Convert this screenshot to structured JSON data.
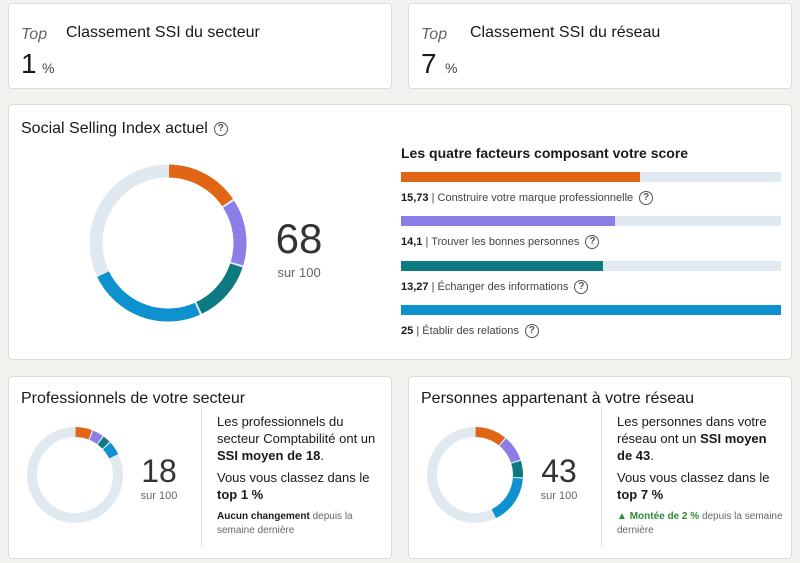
{
  "sector_rank": {
    "top_label": "Top",
    "title": "Classement SSI du secteur",
    "value": "1",
    "unit": "%"
  },
  "network_rank": {
    "top_label": "Top",
    "title": "Classement SSI du réseau",
    "value": "7",
    "unit": "%"
  },
  "ssi": {
    "title": "Social Selling Index actuel",
    "help_icon": "question-circle-icon",
    "score": "68",
    "out_of": "sur 100",
    "factors_title": "Les quatre facteurs composant votre score",
    "factors": [
      {
        "value": "15,73",
        "label": "| Construire votre marque professionnelle",
        "score": 15.73,
        "max": 25,
        "color": "#e06514"
      },
      {
        "value": "14,1",
        "label": "| Trouver les bonnes personnes",
        "score": 14.1,
        "max": 25,
        "color": "#8b7ee6"
      },
      {
        "value": "13,27",
        "label": "| Échanger des informations",
        "score": 13.27,
        "max": 25,
        "color": "#0d7a82"
      },
      {
        "value": "25",
        "label": "| Établir des relations",
        "score": 25,
        "max": 25,
        "color": "#0d92cf"
      }
    ]
  },
  "sector_peers": {
    "title": "Professionnels de votre secteur",
    "score": "18",
    "out_of": "sur 100",
    "donut_values": [
      6,
      4,
      3,
      5
    ],
    "desc_line1": "Les professionnels du secteur Comptabilité ont un",
    "desc_bold": "SSI moyen de 18",
    "desc_end": ".",
    "rank_text": "Vous vous classez dans le",
    "rank_bold": "top 1 %",
    "change_bold": "Aucun changement",
    "change_text": "depuis la semaine dernière"
  },
  "network_peers": {
    "title": "Personnes appartenant à votre réseau",
    "score": "43",
    "out_of": "sur 100",
    "donut_values": [
      11,
      9,
      6,
      17
    ],
    "desc_line1": "Les personnes dans votre réseau ont un",
    "desc_bold": "SSI moyen de 43",
    "desc_end": ".",
    "rank_text": "Vous vous classez dans le",
    "rank_bold": "top 7 %",
    "change_arrow": "▲",
    "change_bold": "Montée de 2 %",
    "change_text": "depuis la semaine dernière"
  },
  "colors": {
    "track": "#e1e9f0",
    "orange": "#e06514",
    "purple": "#8b7ee6",
    "teal": "#0d7a82",
    "blue": "#0d92cf"
  }
}
